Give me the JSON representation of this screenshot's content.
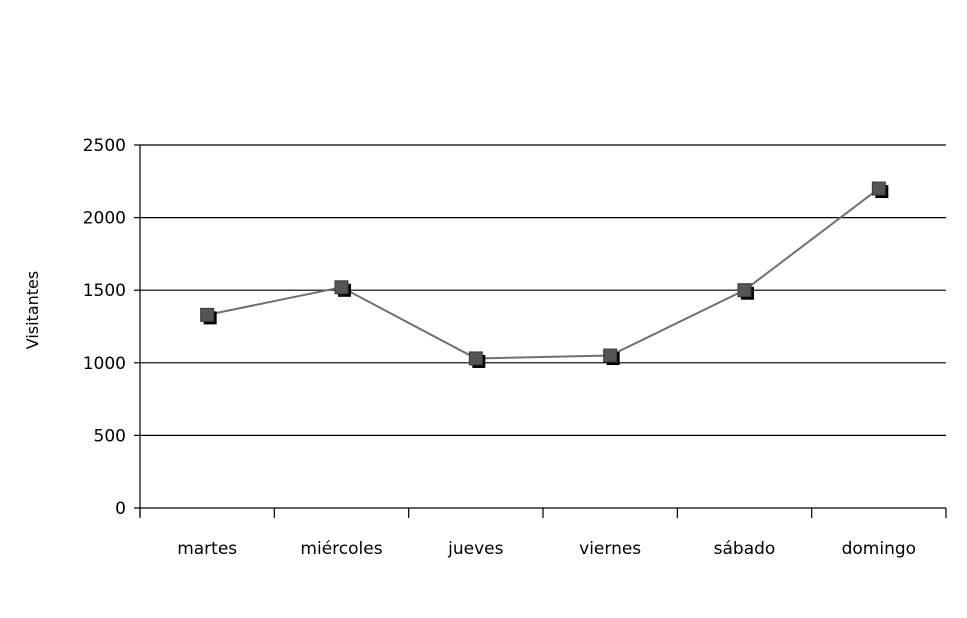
{
  "chart_data": {
    "type": "line",
    "categories": [
      "martes",
      "miércoles",
      "jueves",
      "viernes",
      "sábado",
      "domingo"
    ],
    "series": [
      {
        "values": [
          1330,
          1520,
          1030,
          1050,
          1500,
          2200
        ]
      }
    ],
    "title": "",
    "xlabel": "",
    "ylabel": "Visitantes",
    "ylim": [
      0,
      2500
    ],
    "yticks": [
      0,
      500,
      1000,
      1500,
      2000,
      2500
    ],
    "grid": true,
    "legend": "none",
    "colors": {
      "line": "#707070",
      "marker": "#555555",
      "marker_shadow": "#000000",
      "gridline": "#000000",
      "axis": "#000000"
    }
  }
}
